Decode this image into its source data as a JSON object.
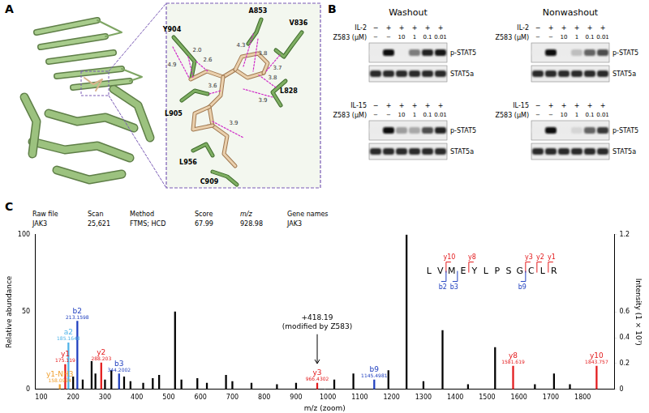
{
  "panel_a": {
    "label": "A",
    "residues": [
      "Y904",
      "A853",
      "V836",
      "L828",
      "L905",
      "L956",
      "C909"
    ],
    "distances": [
      "4.9",
      "2.0",
      "2.6",
      "4.3",
      "3.8",
      "3.7",
      "3.8",
      "3.6",
      "3.9",
      "3.9"
    ]
  },
  "panel_b": {
    "label": "B",
    "groups": [
      {
        "title": "Washout",
        "blocks": [
          {
            "cytokine": "IL-2",
            "treatment": "Z583 (μM)",
            "cytokine_lanes": [
              "−",
              "+",
              "+",
              "+",
              "+",
              "+"
            ],
            "dose_lanes": [
              "−",
              "−",
              "10",
              "1",
              "0.1",
              "0.01"
            ],
            "blots": [
              {
                "name": "p-STAT5",
                "intensity": [
                  0,
                  1,
                  0,
                  0.5,
                  0.9,
                  0.95
                ]
              },
              {
                "name": "STAT5a",
                "intensity": [
                  0.85,
                  0.85,
                  0.85,
                  0.85,
                  0.85,
                  0.85
                ]
              }
            ]
          },
          {
            "cytokine": "IL-15",
            "treatment": "Z583 (μM)",
            "cytokine_lanes": [
              "−",
              "+",
              "+",
              "+",
              "+",
              "+"
            ],
            "dose_lanes": [
              "−",
              "−",
              "10",
              "1",
              "0.1",
              "0.01"
            ],
            "blots": [
              {
                "name": "p-STAT5",
                "intensity": [
                  0,
                  1,
                  0.35,
                  0.3,
                  0.7,
                  0.9
                ]
              },
              {
                "name": "STAT5a",
                "intensity": [
                  0.85,
                  0.85,
                  0.85,
                  0.85,
                  0.85,
                  0.85
                ]
              }
            ]
          }
        ]
      },
      {
        "title": "Nonwashout",
        "blocks": [
          {
            "cytokine": "IL-2",
            "treatment": "Z583 (μM)",
            "cytokine_lanes": [
              "−",
              "+",
              "+",
              "+",
              "+",
              "+"
            ],
            "dose_lanes": [
              "−",
              "−",
              "10",
              "1",
              "0.1",
              "0.01"
            ],
            "blots": [
              {
                "name": "p-STAT5",
                "intensity": [
                  0,
                  1,
                  0,
                  0.2,
                  0.6,
                  0.7
                ]
              },
              {
                "name": "STAT5a",
                "intensity": [
                  0.85,
                  0.85,
                  0.85,
                  0.85,
                  0.85,
                  0.85
                ]
              }
            ]
          },
          {
            "cytokine": "IL-15",
            "treatment": "Z583 (μM)",
            "cytokine_lanes": [
              "−",
              "+",
              "+",
              "+",
              "+",
              "+"
            ],
            "dose_lanes": [
              "−",
              "−",
              "10",
              "1",
              "0.1",
              "0.01"
            ],
            "blots": [
              {
                "name": "p-STAT5",
                "intensity": [
                  0,
                  1,
                  0,
                  0.1,
                  0.6,
                  0.8
                ]
              },
              {
                "name": "STAT5a",
                "intensity": [
                  0.85,
                  0.85,
                  0.85,
                  0.85,
                  0.85,
                  0.85
                ]
              }
            ]
          }
        ]
      }
    ]
  },
  "panel_c_header": {
    "label": "C",
    "columns": [
      "Raw file",
      "Scan",
      "Method",
      "Score",
      "m/z",
      "Gene names"
    ],
    "values": [
      "JAK3",
      "25,621",
      "FTMS; HCD",
      "67.99",
      "928.98",
      "JAK3"
    ]
  },
  "chart_data": {
    "type": "bar",
    "x_label": "m/z (zoom)",
    "y_label": "Relative abundance",
    "y2_label": "Intensity (1 × 10⁷)",
    "x": [
      158.0924,
      175.119,
      185.1648,
      200,
      213.1598,
      230,
      258,
      270,
      288.203,
      300,
      320,
      344.2002,
      360,
      380,
      420,
      450,
      470,
      520,
      540,
      590,
      620,
      680,
      700,
      760,
      840,
      900,
      966.4302,
      1020,
      1080,
      1145.4981,
      1190,
      1247,
      1300,
      1360,
      1440,
      1525,
      1581.619,
      1650,
      1710,
      1760,
      1843.757
    ],
    "values": [
      3,
      16,
      30,
      8,
      44,
      6,
      18,
      10,
      17,
      6,
      12,
      10,
      8,
      5,
      4,
      7,
      9,
      50,
      6,
      7,
      4,
      9,
      5,
      4,
      3,
      4,
      4,
      6,
      10,
      6,
      12,
      100,
      5,
      38,
      3,
      27,
      15,
      3,
      10,
      3,
      15
    ],
    "colors": [
      "#f0a030",
      "#e31a1c",
      "#4fb3e8",
      "#000000",
      "#1f3fbf",
      "#000000",
      "#000000",
      "#000000",
      "#e31a1c",
      "#000000",
      "#000000",
      "#1f3fbf",
      "#000000",
      "#000000",
      "#000000",
      "#000000",
      "#000000",
      "#000000",
      "#000000",
      "#000000",
      "#000000",
      "#000000",
      "#000000",
      "#000000",
      "#000000",
      "#000000",
      "#e31a1c",
      "#000000",
      "#000000",
      "#1f3fbf",
      "#000000",
      "#000000",
      "#000000",
      "#000000",
      "#000000",
      "#000000",
      "#e31a1c",
      "#000000",
      "#000000",
      "#000000",
      "#e31a1c"
    ],
    "xlim": [
      80,
      1900
    ],
    "xticks": [
      100,
      200,
      300,
      400,
      500,
      600,
      700,
      800,
      900,
      1000,
      1100,
      1200,
      1300,
      1400,
      1500,
      1600,
      1700,
      1800
    ],
    "ylim": [
      0,
      100
    ],
    "yticks": [
      0,
      50,
      100
    ],
    "y2lim": [
      0,
      1.2
    ],
    "y2ticks": [
      0,
      0.2,
      0.4,
      0.6,
      1.2
    ],
    "grid": false,
    "annotations": [
      {
        "label": "y1-NH3",
        "value_label": "158.0924",
        "x": 158.0924,
        "color": "#f0a030"
      },
      {
        "label": "y1",
        "value_label": "175.119",
        "x": 175.119,
        "color": "#e31a1c"
      },
      {
        "label": "a2",
        "value_label": "185.1648",
        "x": 185.1648,
        "color": "#4fb3e8"
      },
      {
        "label": "b2",
        "value_label": "213.1598",
        "x": 213.1598,
        "color": "#1f3fbf"
      },
      {
        "label": "y2",
        "value_label": "288.203",
        "x": 288.203,
        "color": "#e31a1c"
      },
      {
        "label": "b3",
        "value_label": "344.2002",
        "x": 344.2002,
        "color": "#1f3fbf"
      },
      {
        "label": "y3",
        "value_label": "966.4302",
        "x": 966.4302,
        "color": "#e31a1c"
      },
      {
        "label": "b9",
        "value_label": "1145.4981",
        "x": 1145.4981,
        "color": "#1f3fbf"
      },
      {
        "label": "y8",
        "value_label": "1581.619",
        "x": 1581.619,
        "color": "#e31a1c"
      },
      {
        "label": "y10",
        "value_label": "1843.757",
        "x": 1843.757,
        "color": "#e31a1c"
      }
    ],
    "callout": {
      "lines": [
        "+418.19",
        "(modified by Z583)"
      ],
      "x": 966.4302
    },
    "sequence": [
      "L",
      "V",
      "M",
      "E",
      "Y",
      "L",
      "P",
      "S",
      "G",
      "C",
      "L",
      "R"
    ],
    "fragments": {
      "y": {
        "labels": [
          "y10",
          "y8",
          "y3",
          "y2",
          "y1"
        ],
        "color": "#e31a1c"
      },
      "b": {
        "labels": [
          "b2",
          "b3",
          "b9"
        ],
        "color": "#1f3fbf"
      }
    }
  }
}
